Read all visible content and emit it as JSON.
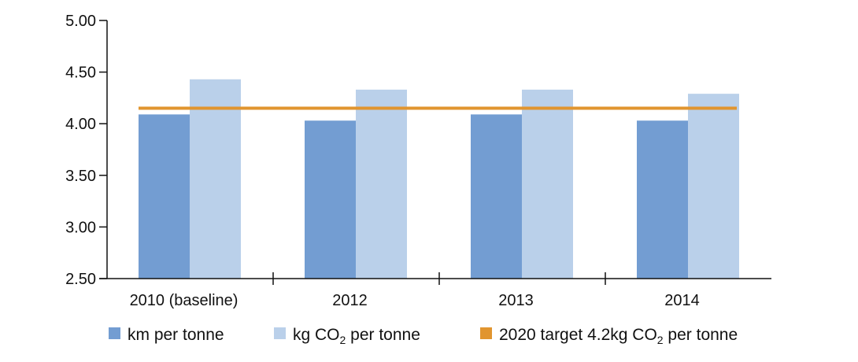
{
  "chart_data": {
    "type": "bar",
    "categories": [
      "2010 (baseline)",
      "2012",
      "2013",
      "2014"
    ],
    "series": [
      {
        "name": "km per tonne",
        "values": [
          4.09,
          4.03,
          4.09,
          4.03
        ],
        "color": "#739dd2"
      },
      {
        "name_parts": [
          "kg CO",
          "2",
          " per tonne"
        ],
        "values": [
          4.43,
          4.33,
          4.33,
          4.29
        ],
        "color": "#bad0ea"
      }
    ],
    "target_line": {
      "name_parts": [
        "2020 target 4.2kg CO",
        "2",
        " per tonne"
      ],
      "value": 4.15,
      "color": "#e1952f"
    },
    "y_ticks": [
      "2.50",
      "3.00",
      "3.50",
      "4.00",
      "4.50",
      "5.00"
    ],
    "ylim": [
      2.5,
      5.0
    ],
    "grid": false,
    "legend_position": "bottom-left"
  }
}
